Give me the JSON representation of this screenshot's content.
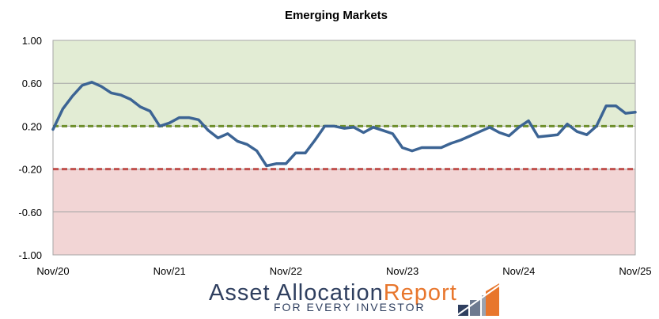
{
  "chart_data": {
    "type": "line",
    "title": "Emerging Markets",
    "xlabel": "",
    "ylabel": "",
    "x_tick_labels": [
      "Nov/20",
      "Nov/21",
      "Nov/22",
      "Nov/23",
      "Nov/24",
      "Nov/25"
    ],
    "y_tick_labels": [
      "1.00",
      "0.60",
      "0.20",
      "-0.20",
      "-0.60",
      "-1.00"
    ],
    "ylim": [
      -1.0,
      1.0
    ],
    "grid": true,
    "legend": "none",
    "threshold_upper": 0.2,
    "threshold_lower": -0.2,
    "colors": {
      "line": "#3c6494",
      "upper_zone": "#e2ecd4",
      "lower_zone": "#f2d5d5",
      "upper_threshold": "#6e8f2c",
      "lower_threshold": "#c0504d"
    },
    "x": [
      "Nov/20",
      "Dec/20",
      "Jan/21",
      "Feb/21",
      "Mar/21",
      "Apr/21",
      "May/21",
      "Jun/21",
      "Jul/21",
      "Aug/21",
      "Sep/21",
      "Oct/21",
      "Nov/21",
      "Dec/21",
      "Jan/22",
      "Feb/22",
      "Mar/22",
      "Apr/22",
      "May/22",
      "Jun/22",
      "Jul/22",
      "Aug/22",
      "Sep/22",
      "Oct/22",
      "Nov/22",
      "Dec/22",
      "Jan/23",
      "Feb/23",
      "Mar/23",
      "Apr/23",
      "May/23",
      "Jun/23",
      "Jul/23",
      "Aug/23",
      "Sep/23",
      "Oct/23",
      "Nov/23",
      "Dec/23",
      "Jan/24",
      "Feb/24",
      "Mar/24",
      "Apr/24",
      "May/24",
      "Jun/24",
      "Jul/24",
      "Aug/24",
      "Sep/24",
      "Oct/24",
      "Nov/24",
      "Dec/24",
      "Jan/25",
      "Feb/25",
      "Mar/25",
      "Apr/25",
      "May/25",
      "Jun/25",
      "Jul/25",
      "Aug/25",
      "Sep/25",
      "Oct/25",
      "Nov/25"
    ],
    "series": [
      {
        "values": [
          0.17,
          0.36,
          0.48,
          0.58,
          0.61,
          0.57,
          0.51,
          0.49,
          0.45,
          0.38,
          0.34,
          0.2,
          0.23,
          0.28,
          0.28,
          0.26,
          0.16,
          0.09,
          0.13,
          0.06,
          0.03,
          -0.03,
          -0.17,
          -0.15,
          -0.15,
          -0.05,
          -0.05,
          0.07,
          0.2,
          0.2,
          0.18,
          0.19,
          0.14,
          0.19,
          0.16,
          0.13,
          0.0,
          -0.03,
          0.0,
          0.0,
          0.0,
          0.04,
          0.07,
          0.11,
          0.15,
          0.19,
          0.14,
          0.11,
          0.19,
          0.25,
          0.1,
          0.11,
          0.12,
          0.22,
          0.15,
          0.12,
          0.2,
          0.39,
          0.39,
          0.32,
          0.33
        ]
      }
    ]
  },
  "logo": {
    "line1_part1": "Asset Allocation",
    "line1_part2": "Report",
    "line2": "FOR EVERY INVESTOR",
    "colors": {
      "navy": "#2f3f5f",
      "orange": "#e8762c"
    }
  }
}
